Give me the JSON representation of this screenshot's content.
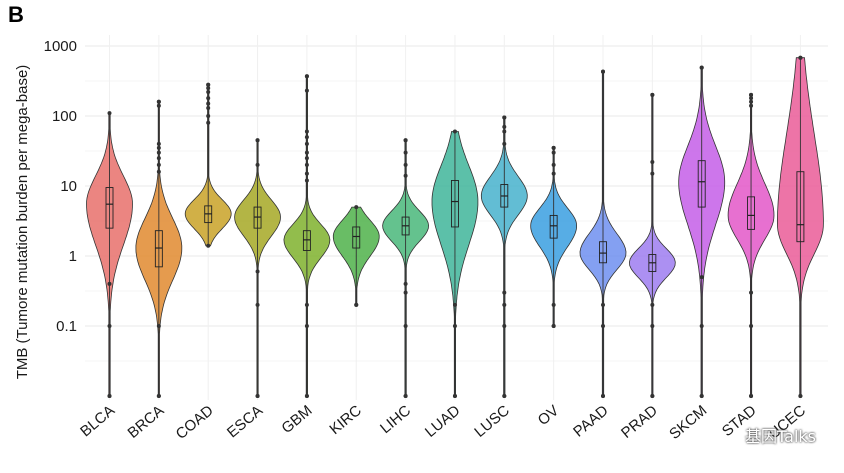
{
  "panel_label": "B",
  "watermark": "基因Talks",
  "chart_data": {
    "type": "violin",
    "title": "",
    "xlabel": "",
    "ylabel": "TMB (Tumore mutation burden per mega-base)",
    "y_scale": "log10",
    "ylim": [
      0.01,
      1000
    ],
    "y_ticks": [
      0.1,
      1,
      10,
      100,
      1000
    ],
    "y_tick_labels": [
      "0.1",
      "1",
      "10",
      "100",
      "1000"
    ],
    "grid": true,
    "legend": "none",
    "categories": [
      "BLCA",
      "BRCA",
      "COAD",
      "ESCA",
      "GBM",
      "KIRC",
      "LIHC",
      "LUAD",
      "LUSC",
      "OV",
      "PAAD",
      "PRAD",
      "SKCM",
      "STAD",
      "UCEC"
    ],
    "category_labels": [
      "BLCA",
      "BRCA",
      "COAD",
      "ESCA",
      "GBM",
      "KIRC",
      "LIHC",
      "LUAD",
      "LUSC",
      "OV",
      "PAAD",
      "PRAD",
      "SKCM",
      "STAD",
      "UCEC"
    ],
    "colors": [
      "#e8706b",
      "#e08a2f",
      "#c9a227",
      "#a6a824",
      "#7fb22d",
      "#4fb14a",
      "#49b77a",
      "#3fb59a",
      "#46b2cc",
      "#3a9fe0",
      "#6f8ff0",
      "#9d7df0",
      "#c45ee8",
      "#e357c8",
      "#ea5c98"
    ],
    "series": [
      {
        "name": "BLCA",
        "min": 0.01,
        "q1": 2.5,
        "median": 5.5,
        "q3": 9.5,
        "max": 110,
        "outliers": [
          0.1,
          0.4,
          0.01
        ]
      },
      {
        "name": "BRCA",
        "min": 0.01,
        "q1": 0.7,
        "median": 1.3,
        "q3": 2.3,
        "max": 160,
        "outliers": [
          0.1,
          0.01,
          16,
          20,
          25,
          30,
          35,
          40,
          140,
          160
        ]
      },
      {
        "name": "COAD",
        "min": 1.4,
        "q1": 3.0,
        "median": 4.0,
        "q3": 5.2,
        "max": 280,
        "outliers": [
          80,
          100,
          130,
          150,
          180,
          220,
          250,
          280
        ]
      },
      {
        "name": "ESCA",
        "min": 0.01,
        "q1": 2.5,
        "median": 3.6,
        "q3": 5.0,
        "max": 45,
        "outliers": [
          0.6,
          0.2,
          0.01,
          20,
          45
        ]
      },
      {
        "name": "GBM",
        "min": 0.01,
        "q1": 1.2,
        "median": 1.7,
        "q3": 2.3,
        "max": 370,
        "outliers": [
          0.2,
          0.1,
          0.01,
          12,
          15,
          20,
          25,
          30,
          40,
          50,
          60,
          230,
          370
        ]
      },
      {
        "name": "KIRC",
        "min": 0.2,
        "q1": 1.3,
        "median": 1.9,
        "q3": 2.6,
        "max": 5.0,
        "outliers": [
          0.2
        ]
      },
      {
        "name": "LIHC",
        "min": 0.01,
        "q1": 2.0,
        "median": 2.7,
        "q3": 3.6,
        "max": 45,
        "outliers": [
          0.3,
          0.4,
          0.1,
          0.01,
          14,
          20,
          30,
          45
        ]
      },
      {
        "name": "LUAD",
        "min": 0.01,
        "q1": 2.6,
        "median": 6.0,
        "q3": 12.0,
        "max": 60,
        "outliers": [
          0.2,
          0.1,
          0.01
        ]
      },
      {
        "name": "LUSC",
        "min": 0.01,
        "q1": 5.0,
        "median": 7.2,
        "q3": 10.5,
        "max": 95,
        "outliers": [
          0.3,
          0.2,
          0.1,
          0.01,
          40,
          60,
          70,
          95
        ]
      },
      {
        "name": "OV",
        "min": 0.1,
        "q1": 1.8,
        "median": 2.7,
        "q3": 3.8,
        "max": 35,
        "outliers": [
          0.1,
          0.2,
          15,
          20,
          30,
          35
        ]
      },
      {
        "name": "PAAD",
        "min": 0.01,
        "q1": 0.8,
        "median": 1.1,
        "q3": 1.6,
        "max": 430,
        "outliers": [
          0.2,
          0.1,
          0.01,
          430
        ]
      },
      {
        "name": "PRAD",
        "min": 0.01,
        "q1": 0.6,
        "median": 0.8,
        "q3": 1.05,
        "max": 200,
        "outliers": [
          0.2,
          0.1,
          0.01,
          15,
          22,
          200
        ]
      },
      {
        "name": "SKCM",
        "min": 0.01,
        "q1": 5.0,
        "median": 11.5,
        "q3": 23.0,
        "max": 490,
        "outliers": [
          0.5,
          0.1,
          0.01,
          490
        ]
      },
      {
        "name": "STAD",
        "min": 0.01,
        "q1": 2.4,
        "median": 3.8,
        "q3": 7.0,
        "max": 200,
        "outliers": [
          0.3,
          0.1,
          0.01,
          140,
          160,
          180,
          200
        ]
      },
      {
        "name": "UCEC",
        "min": 0.01,
        "q1": 1.6,
        "median": 2.8,
        "q3": 16.0,
        "max": 680,
        "outliers": [
          0.01,
          680
        ]
      }
    ]
  }
}
